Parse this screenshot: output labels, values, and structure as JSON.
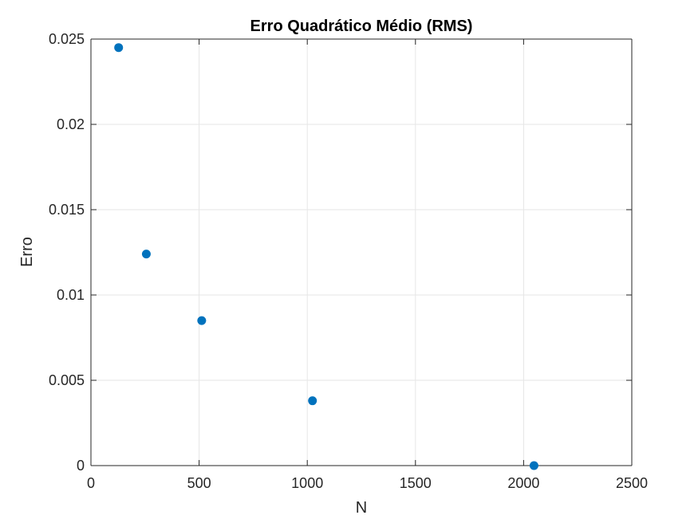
{
  "chart_data": {
    "type": "scatter",
    "title": "Erro Quadrático Médio (RMS)",
    "xlabel": "N",
    "ylabel": "Erro",
    "xlim": [
      0,
      2500
    ],
    "ylim": [
      0,
      0.025
    ],
    "xticks": [
      0,
      500,
      1000,
      1500,
      2000,
      2500
    ],
    "xtick_labels": [
      "0",
      "500",
      "1000",
      "1500",
      "2000",
      "2500"
    ],
    "yticks": [
      0,
      0.005,
      0.01,
      0.015,
      0.02,
      0.025
    ],
    "ytick_labels": [
      "0",
      "0.005",
      "0.01",
      "0.015",
      "0.02",
      "0.025"
    ],
    "grid": true,
    "series": [
      {
        "x": [
          128,
          256,
          512,
          1024,
          2048
        ],
        "y": [
          0.0245,
          0.0124,
          0.0085,
          0.0038,
          0.0
        ]
      }
    ]
  },
  "colors": {
    "marker": "#0072BD",
    "grid": "#e6e6e6",
    "axis": "#262626"
  }
}
